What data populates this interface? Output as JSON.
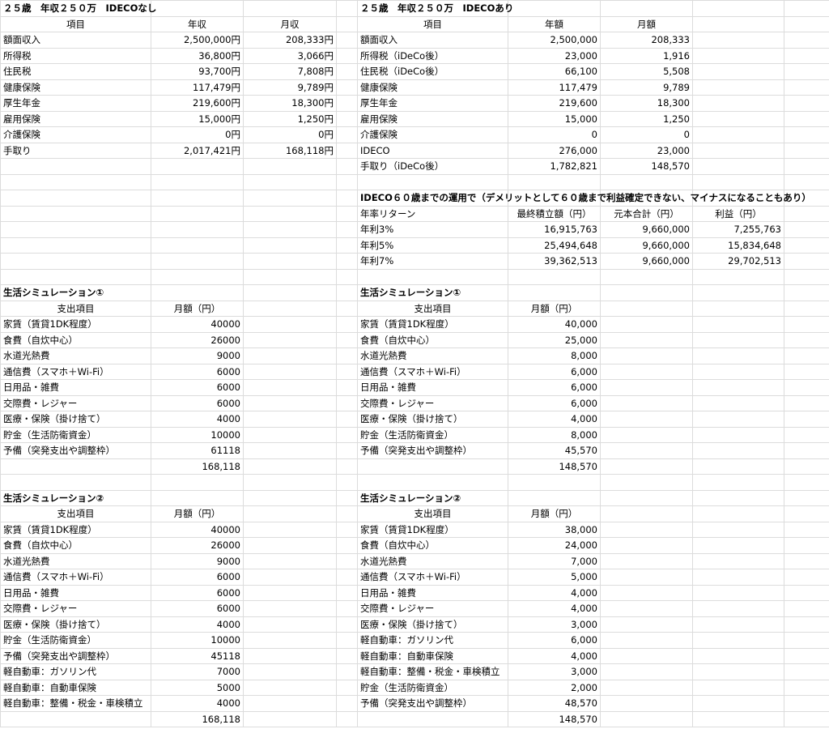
{
  "left_income": {
    "title": "２５歳　年収２５０万　IDECOなし",
    "header": [
      "項目",
      "年収",
      "月収"
    ],
    "rows": [
      [
        "額面収入",
        "2,500,000円",
        "208,333円"
      ],
      [
        "所得税",
        "36,800円",
        "3,066円"
      ],
      [
        "住民税",
        "93,700円",
        "7,808円"
      ],
      [
        "健康保険",
        "117,479円",
        "9,789円"
      ],
      [
        "厚生年金",
        "219,600円",
        "18,300円"
      ],
      [
        "雇用保険",
        "15,000円",
        "1,250円"
      ],
      [
        "介護保険",
        "0円",
        "0円"
      ],
      [
        "手取り",
        "2,017,421円",
        "168,118円"
      ]
    ]
  },
  "right_income": {
    "title": "２５歳　年収２５０万　IDECOあり",
    "header": [
      "項目",
      "年額",
      "月額"
    ],
    "rows": [
      [
        "額面収入",
        "2,500,000",
        "208,333"
      ],
      [
        "所得税（iDeCo後）",
        "23,000",
        "1,916"
      ],
      [
        "住民税（iDeCo後）",
        "66,100",
        "5,508"
      ],
      [
        "健康保険",
        "117,479",
        "9,789"
      ],
      [
        "厚生年金",
        "219,600",
        "18,300"
      ],
      [
        "雇用保険",
        "15,000",
        "1,250"
      ],
      [
        "介護保険",
        "0",
        "0"
      ],
      [
        "IDECO",
        "276,000",
        "23,000"
      ],
      [
        "手取り（iDeCo後）",
        "1,782,821",
        "148,570"
      ]
    ]
  },
  "ideco_projection": {
    "title": "IDECO６０歳までの運用で（デメリットとして６０歳まで利益確定できない、マイナスになることもあり）",
    "header": [
      "年率リターン",
      "最終積立額（円）",
      "元本合計（円）",
      "利益（円）"
    ],
    "rows": [
      [
        "年利3%",
        "16,915,763",
        "9,660,000",
        "7,255,763"
      ],
      [
        "年利5%",
        "25,494,648",
        "9,660,000",
        "15,834,648"
      ],
      [
        "年利7%",
        "39,362,513",
        "9,660,000",
        "29,702,513"
      ]
    ]
  },
  "left_sim1": {
    "title": "生活シミュレーション①",
    "header": [
      "支出項目",
      "月額（円）"
    ],
    "rows": [
      [
        "家賃（賃貸1DK程度）",
        "40000"
      ],
      [
        "食費（自炊中心）",
        "26000"
      ],
      [
        "水道光熱費",
        "9000"
      ],
      [
        "通信費（スマホ＋Wi-Fi）",
        "6000"
      ],
      [
        "日用品・雑費",
        "6000"
      ],
      [
        "交際費・レジャー",
        "6000"
      ],
      [
        "医療・保険（掛け捨て）",
        "4000"
      ],
      [
        "貯金（生活防衛資金）",
        "10000"
      ],
      [
        "予備（突発支出や調整枠）",
        "61118"
      ]
    ],
    "total": "168,118"
  },
  "right_sim1": {
    "title": "生活シミュレーション①",
    "header": [
      "支出項目",
      "月額（円）"
    ],
    "rows": [
      [
        "家賃（賃貸1DK程度）",
        "40,000"
      ],
      [
        "食費（自炊中心）",
        "25,000"
      ],
      [
        "水道光熱費",
        "8,000"
      ],
      [
        "通信費（スマホ＋Wi-Fi）",
        "6,000"
      ],
      [
        "日用品・雑費",
        "6,000"
      ],
      [
        "交際費・レジャー",
        "6,000"
      ],
      [
        "医療・保険（掛け捨て）",
        "4,000"
      ],
      [
        "貯金（生活防衛資金）",
        "8,000"
      ],
      [
        "予備（突発支出や調整枠）",
        "45,570"
      ]
    ],
    "total": "148,570"
  },
  "left_sim2": {
    "title": "生活シミュレーション②",
    "header": [
      "支出項目",
      "月額（円）"
    ],
    "rows": [
      [
        "家賃（賃貸1DK程度）",
        "40000"
      ],
      [
        "食費（自炊中心）",
        "26000"
      ],
      [
        "水道光熱費",
        "9000"
      ],
      [
        "通信費（スマホ＋Wi-Fi）",
        "6000"
      ],
      [
        "日用品・雑費",
        "6000"
      ],
      [
        "交際費・レジャー",
        "6000"
      ],
      [
        "医療・保険（掛け捨て）",
        "4000"
      ],
      [
        "貯金（生活防衛資金）",
        "10000"
      ],
      [
        "予備（突発支出や調整枠）",
        "45118"
      ],
      [
        "軽自動車：ガソリン代",
        "7000"
      ],
      [
        "軽自動車：自動車保険",
        "5000"
      ],
      [
        "軽自動車：整備・税金・車検積立",
        "4000"
      ]
    ],
    "total": "168,118"
  },
  "right_sim2": {
    "title": "生活シミュレーション②",
    "header": [
      "支出項目",
      "月額（円）"
    ],
    "rows": [
      [
        "家賃（賃貸1DK程度）",
        "38,000"
      ],
      [
        "食費（自炊中心）",
        "24,000"
      ],
      [
        "水道光熱費",
        "7,000"
      ],
      [
        "通信費（スマホ＋Wi-Fi）",
        "5,000"
      ],
      [
        "日用品・雑費",
        "4,000"
      ],
      [
        "交際費・レジャー",
        "4,000"
      ],
      [
        "医療・保険（掛け捨て）",
        "3,000"
      ],
      [
        "軽自動車：ガソリン代",
        "6,000"
      ],
      [
        "軽自動車：自動車保険",
        "4,000"
      ],
      [
        "軽自動車：整備・税金・車検積立",
        "3,000"
      ],
      [
        "貯金（生活防衛資金）",
        "2,000"
      ],
      [
        "予備（突発支出や調整枠）",
        "48,570"
      ]
    ],
    "total": "148,570"
  }
}
